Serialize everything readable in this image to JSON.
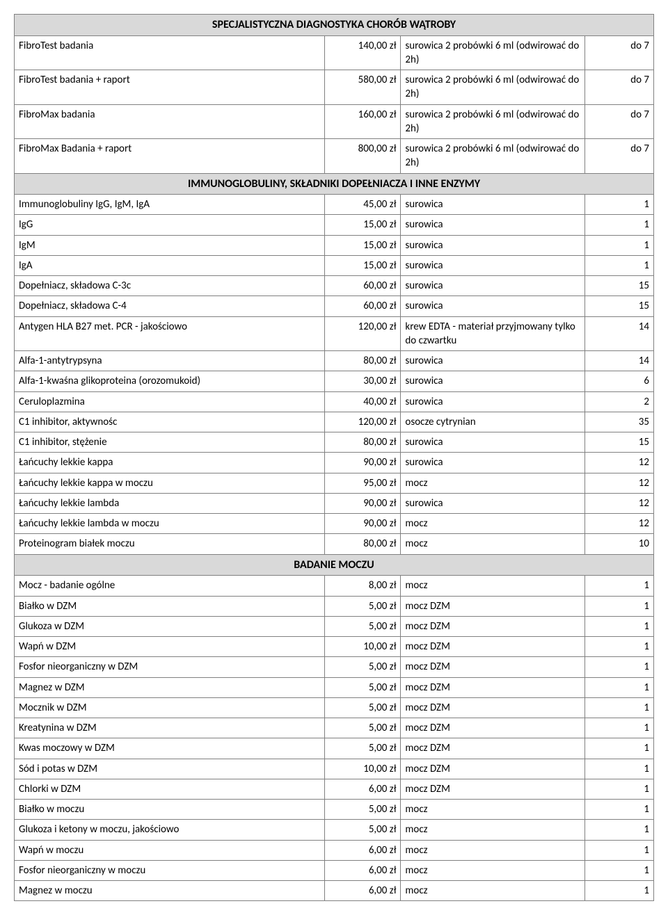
{
  "sections": [
    {
      "title": "SPECJALISTYCZNA DIAGNOSTYKA CHORÓB WĄTROBY",
      "rows": [
        {
          "name": "FibroTest badania",
          "price": "140,00 zł",
          "material": "surowica 2 probówki 6 ml (odwirować do 2h)",
          "days": "do 7"
        },
        {
          "name": "FibroTest badania + raport",
          "price": "580,00 zł",
          "material": "surowica 2 probówki 6 ml (odwirować do 2h)",
          "days": "do 7"
        },
        {
          "name": "FibroMax badania",
          "price": "160,00 zł",
          "material": "surowica 2 probówki 6 ml (odwirować do 2h)",
          "days": "do 7"
        },
        {
          "name": "FibroMax Badania + raport",
          "price": "800,00 zł",
          "material": "surowica 2 probówki 6 ml (odwirować do 2h)",
          "days": "do 7"
        }
      ]
    },
    {
      "title": "IMMUNOGLOBULINY, SKŁADNIKI DOPEŁNIACZA I INNE ENZYMY",
      "rows": [
        {
          "name": "Immunoglobuliny IgG, IgM, IgA",
          "price": "45,00 zł",
          "material": "surowica",
          "days": "1"
        },
        {
          "name": "IgG",
          "price": "15,00 zł",
          "material": "surowica",
          "days": "1"
        },
        {
          "name": "IgM",
          "price": "15,00 zł",
          "material": "surowica",
          "days": "1"
        },
        {
          "name": "IgA",
          "price": "15,00 zł",
          "material": "surowica",
          "days": "1"
        },
        {
          "name": "Dopełniacz, składowa C-3c",
          "price": "60,00 zł",
          "material": "surowica",
          "days": "15"
        },
        {
          "name": "Dopełniacz, składowa C-4",
          "price": "60,00 zł",
          "material": "surowica",
          "days": "15"
        },
        {
          "name": "Antygen HLA B27 met. PCR - jakościowo",
          "price": "120,00 zł",
          "material": "krew EDTA - materiał przyjmowany tylko do czwartku",
          "days": "14"
        },
        {
          "name": "Alfa-1-antytrypsyna",
          "price": "80,00 zł",
          "material": "surowica",
          "days": "14"
        },
        {
          "name": "Alfa-1-kwaśna glikoproteina (orozomukoid)",
          "price": "30,00 zł",
          "material": "surowica",
          "days": "6"
        },
        {
          "name": "Ceruloplazmina",
          "price": "40,00 zł",
          "material": "surowica",
          "days": "2"
        },
        {
          "name": "C1 inhibitor, aktywnośc",
          "price": "120,00 zł",
          "material": "osocze cytrynian",
          "days": "35"
        },
        {
          "name": "C1 inhibitor, stężenie",
          "price": "80,00 zł",
          "material": "surowica",
          "days": "15"
        },
        {
          "name": "Łańcuchy lekkie kappa",
          "price": "90,00 zł",
          "material": "surowica",
          "days": "12"
        },
        {
          "name": "Łańcuchy lekkie kappa w moczu",
          "price": "95,00 zł",
          "material": "mocz",
          "days": "12"
        },
        {
          "name": "Łańcuchy lekkie lambda",
          "price": "90,00 zł",
          "material": "surowica",
          "days": "12"
        },
        {
          "name": "Łańcuchy lekkie lambda w moczu",
          "price": "90,00 zł",
          "material": "mocz",
          "days": "12"
        },
        {
          "name": "Proteinogram białek moczu",
          "price": "80,00 zł",
          "material": "mocz",
          "days": "10"
        }
      ]
    },
    {
      "title": "BADANIE MOCZU",
      "rows": [
        {
          "name": "Mocz - badanie ogólne",
          "price": "8,00 zł",
          "material": "mocz",
          "days": "1"
        },
        {
          "name": "Białko w DZM",
          "price": "5,00 zł",
          "material": "mocz DZM",
          "days": "1"
        },
        {
          "name": "Glukoza w DZM",
          "price": "5,00 zł",
          "material": "mocz DZM",
          "days": "1"
        },
        {
          "name": "Wapń w DZM",
          "price": "10,00 zł",
          "material": "mocz DZM",
          "days": "1"
        },
        {
          "name": "Fosfor nieorganiczny w DZM",
          "price": "5,00 zł",
          "material": "mocz DZM",
          "days": "1"
        },
        {
          "name": "Magnez w DZM",
          "price": "5,00 zł",
          "material": "mocz DZM",
          "days": "1"
        },
        {
          "name": "Mocznik w DZM",
          "price": "5,00 zł",
          "material": "mocz DZM",
          "days": "1"
        },
        {
          "name": "Kreatynina w DZM",
          "price": "5,00 zł",
          "material": "mocz DZM",
          "days": "1"
        },
        {
          "name": "Kwas moczowy w DZM",
          "price": "5,00 zł",
          "material": "mocz DZM",
          "days": "1"
        },
        {
          "name": "Sód i potas w DZM",
          "price": "10,00 zł",
          "material": "mocz DZM",
          "days": "1"
        },
        {
          "name": "Chlorki w DZM",
          "price": "6,00 zł",
          "material": "mocz DZM",
          "days": "1"
        },
        {
          "name": "Białko w moczu",
          "price": "5,00 zł",
          "material": "mocz",
          "days": "1"
        },
        {
          "name": "Glukoza i ketony w moczu, jakościowo",
          "price": "5,00 zł",
          "material": "mocz",
          "days": "1"
        },
        {
          "name": "Wapń w moczu",
          "price": "6,00 zł",
          "material": "mocz",
          "days": "1"
        },
        {
          "name": "Fosfor nieorganiczny w moczu",
          "price": "6,00 zł",
          "material": "mocz",
          "days": "1"
        },
        {
          "name": "Magnez w moczu",
          "price": "6,00 zł",
          "material": "mocz",
          "days": "1"
        }
      ]
    }
  ]
}
